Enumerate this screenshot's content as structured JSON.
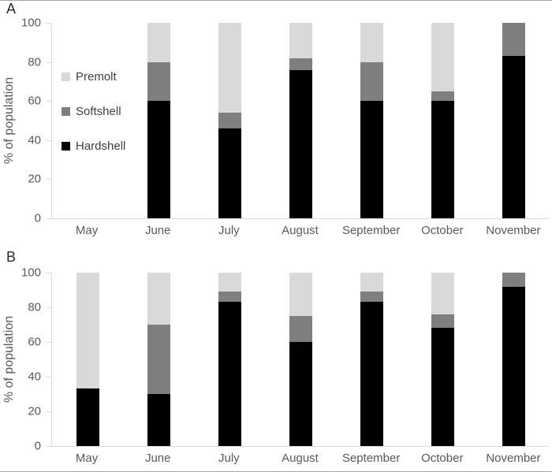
{
  "colors": {
    "hardshell": "#000000",
    "softshell": "#7f7f7f",
    "premolt": "#d9d9d9",
    "axis_line": "#d9d9d9",
    "tick_text": "#595959",
    "legend_text": "#404040"
  },
  "chart_data": [
    {
      "type": "bar",
      "stacked": true,
      "panel_label": "A",
      "ylabel": "% of population",
      "ylim": [
        0,
        100
      ],
      "yticks": [
        0,
        20,
        40,
        60,
        80,
        100
      ],
      "grid": false,
      "categories": [
        "May",
        "June",
        "July",
        "August",
        "September",
        "October",
        "November"
      ],
      "series": [
        {
          "name": "Hardshell",
          "color": "#000000",
          "values": [
            0,
            60,
            46,
            76,
            60,
            60,
            83
          ]
        },
        {
          "name": "Softshell",
          "color": "#7f7f7f",
          "values": [
            0,
            20,
            8,
            6,
            20,
            5,
            17
          ]
        },
        {
          "name": "Premolt",
          "color": "#d9d9d9",
          "values": [
            0,
            20,
            46,
            18,
            20,
            35,
            0
          ]
        }
      ],
      "legend": {
        "position": "inside-top-left",
        "entries": [
          {
            "label": "Premolt",
            "color": "#d9d9d9"
          },
          {
            "label": "Softshell",
            "color": "#7f7f7f"
          },
          {
            "label": "Hardshell",
            "color": "#000000"
          }
        ]
      }
    },
    {
      "type": "bar",
      "stacked": true,
      "panel_label": "B",
      "ylabel": "% of population",
      "ylim": [
        0,
        100
      ],
      "yticks": [
        0,
        20,
        40,
        60,
        80,
        100
      ],
      "grid": false,
      "categories": [
        "May",
        "June",
        "July",
        "August",
        "September",
        "October",
        "November"
      ],
      "series": [
        {
          "name": "Hardshell",
          "color": "#000000",
          "values": [
            33,
            30,
            83,
            60,
            83,
            68,
            92
          ]
        },
        {
          "name": "Softshell",
          "color": "#7f7f7f",
          "values": [
            0,
            40,
            6,
            15,
            6,
            8,
            8
          ]
        },
        {
          "name": "Premolt",
          "color": "#d9d9d9",
          "values": [
            67,
            30,
            11,
            25,
            11,
            24,
            0
          ]
        }
      ]
    }
  ]
}
